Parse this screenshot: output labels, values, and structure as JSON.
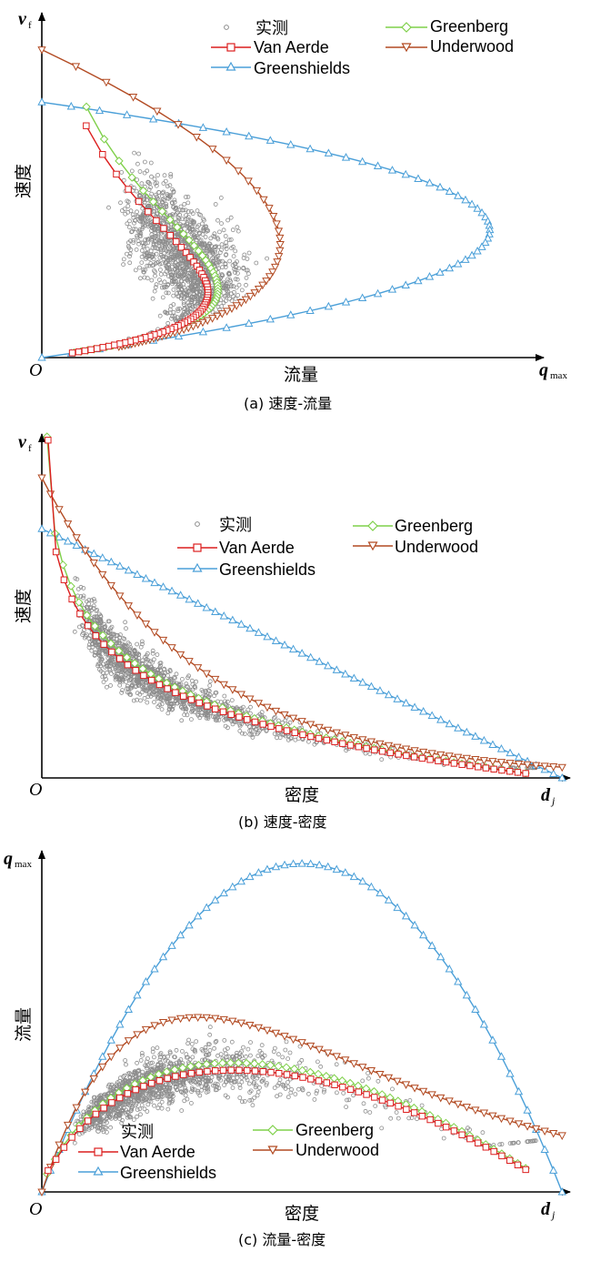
{
  "colors": {
    "measured": "#8c8c8c",
    "greenberg": "#7fd04a",
    "van_aerde": "#dc1e1e",
    "greenshields": "#4a9fd8",
    "underwood": "#b24a22"
  },
  "legend_labels": {
    "measured": "实测",
    "van_aerde": "Van Aerde",
    "greenshields": "Greenshields",
    "greenberg": "Greenberg",
    "underwood": "Underwood"
  },
  "chart_data": [
    {
      "type": "scatter",
      "panel": "a",
      "caption": "(a)  速度-流量",
      "xlabel": "流量",
      "ylabel": "速度",
      "origin_label": "O",
      "x_end_label": "q",
      "x_end_sub": "max",
      "y_top_label": "v",
      "y_top_sub": "f",
      "x_range": [
        0,
        1
      ],
      "y_range": [
        0,
        1
      ],
      "series": [
        {
          "name": "实测",
          "marker": "circle"
        },
        {
          "name": "Van Aerde",
          "marker": "square"
        },
        {
          "name": "Greenshields",
          "marker": "triangle-up"
        },
        {
          "name": "Greenberg",
          "marker": "diamond"
        },
        {
          "name": "Underwood",
          "marker": "triangle-down"
        }
      ]
    },
    {
      "type": "scatter",
      "panel": "b",
      "caption": "(b)  速度-密度",
      "xlabel": "密度",
      "ylabel": "速度",
      "origin_label": "O",
      "x_end_label": "d",
      "x_end_sub": "j",
      "y_top_label": "v",
      "y_top_sub": "f",
      "x_range": [
        0,
        1
      ],
      "y_range": [
        0,
        1
      ],
      "series": [
        {
          "name": "实测",
          "marker": "circle"
        },
        {
          "name": "Van Aerde",
          "marker": "square"
        },
        {
          "name": "Greenshields",
          "marker": "triangle-up"
        },
        {
          "name": "Greenberg",
          "marker": "diamond"
        },
        {
          "name": "Underwood",
          "marker": "triangle-down"
        }
      ]
    },
    {
      "type": "scatter",
      "panel": "c",
      "caption": "(c)  流量-密度",
      "xlabel": "密度",
      "ylabel": "流量",
      "origin_label": "O",
      "x_end_label": "d",
      "x_end_sub": "j",
      "y_top_label": "q",
      "y_top_sub": "max",
      "x_range": [
        0,
        1
      ],
      "y_range": [
        0,
        1
      ],
      "series": [
        {
          "name": "实测",
          "marker": "circle"
        },
        {
          "name": "Van Aerde",
          "marker": "square"
        },
        {
          "name": "Greenshields",
          "marker": "triangle-up"
        },
        {
          "name": "Greenberg",
          "marker": "diamond"
        },
        {
          "name": "Underwood",
          "marker": "triangle-down"
        }
      ]
    }
  ]
}
